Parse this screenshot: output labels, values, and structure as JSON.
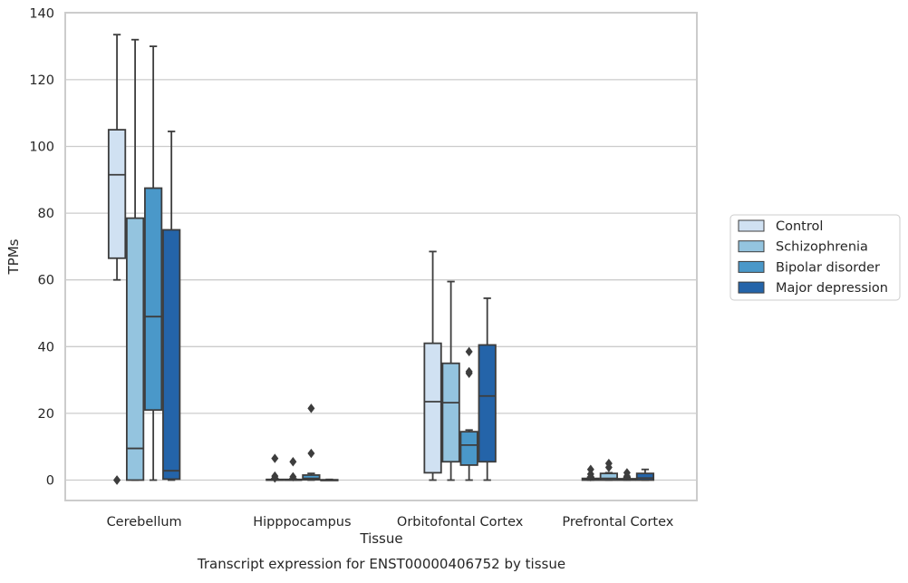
{
  "chart_data": {
    "type": "box",
    "title": "Transcript expression for ENST00000406752 by tissue",
    "xlabel": "Tissue",
    "ylabel": "TPMs",
    "categories": [
      "Cerebellum",
      "Hipppocampus",
      "Orbitofontal Cortex",
      "Prefrontal Cortex"
    ],
    "ylim": [
      -6,
      140
    ],
    "yticks": [
      0,
      20,
      40,
      60,
      80,
      100,
      120,
      140
    ],
    "grid": true,
    "legend_position": "right",
    "series": [
      {
        "name": "Control",
        "color": "#d0e1f2",
        "boxes": [
          {
            "whisker_low": 60,
            "q1": 66.5,
            "median": 91.5,
            "q3": 105,
            "whisker_high": 133.5,
            "outliers": [
              0,
              0
            ]
          },
          {
            "whisker_low": 0,
            "q1": 0,
            "median": 0,
            "q3": 0.2,
            "whisker_high": 0.4,
            "outliers": [
              6.5,
              1.2,
              0.6
            ]
          },
          {
            "whisker_low": 0,
            "q1": 2.2,
            "median": 23.5,
            "q3": 41,
            "whisker_high": 68.5,
            "outliers": []
          },
          {
            "whisker_low": 0,
            "q1": 0,
            "median": 0.2,
            "q3": 0.5,
            "whisker_high": 0.8,
            "outliers": [
              3.2,
              1.8,
              1.0
            ]
          }
        ]
      },
      {
        "name": "Schizophrenia",
        "color": "#94c4df",
        "boxes": [
          {
            "whisker_low": 0,
            "q1": 0,
            "median": 9.5,
            "q3": 78.5,
            "whisker_high": 132,
            "outliers": []
          },
          {
            "whisker_low": 0,
            "q1": 0,
            "median": 0,
            "q3": 0.2,
            "whisker_high": 0.4,
            "outliers": [
              5.5,
              1.0
            ]
          },
          {
            "whisker_low": 0,
            "q1": 5.5,
            "median": 23.2,
            "q3": 35,
            "whisker_high": 59.5,
            "outliers": []
          },
          {
            "whisker_low": 0,
            "q1": 0,
            "median": 0.5,
            "q3": 2.0,
            "whisker_high": 2.2,
            "outliers": [
              5.0,
              3.8
            ]
          }
        ]
      },
      {
        "name": "Bipolar disorder",
        "color": "#4a98c9",
        "boxes": [
          {
            "whisker_low": 0,
            "q1": 21,
            "median": 49,
            "q3": 87.5,
            "whisker_high": 130,
            "outliers": []
          },
          {
            "whisker_low": 0,
            "q1": 0.1,
            "median": 0.5,
            "q3": 1.5,
            "whisker_high": 2.0,
            "outliers": [
              21.5,
              8.0
            ]
          },
          {
            "whisker_low": 0,
            "q1": 4.5,
            "median": 10.5,
            "q3": 14.5,
            "whisker_high": 15,
            "outliers": [
              38.5,
              32.5,
              32.0
            ]
          },
          {
            "whisker_low": 0,
            "q1": 0,
            "median": 0.1,
            "q3": 0.4,
            "whisker_high": 0.8,
            "outliers": [
              2.2,
              1.2
            ]
          }
        ]
      },
      {
        "name": "Major depression",
        "color": "#2464a9",
        "boxes": [
          {
            "whisker_low": 0,
            "q1": 0.3,
            "median": 2.8,
            "q3": 75,
            "whisker_high": 104.5,
            "outliers": []
          },
          {
            "whisker_low": 0,
            "q1": 0,
            "median": 0,
            "q3": 0.1,
            "whisker_high": 0.2,
            "outliers": []
          },
          {
            "whisker_low": 0,
            "q1": 5.5,
            "median": 25.2,
            "q3": 40.5,
            "whisker_high": 54.5,
            "outliers": []
          },
          {
            "whisker_low": 0,
            "q1": 0,
            "median": 0.6,
            "q3": 2.0,
            "whisker_high": 3.2,
            "outliers": []
          }
        ]
      }
    ]
  }
}
